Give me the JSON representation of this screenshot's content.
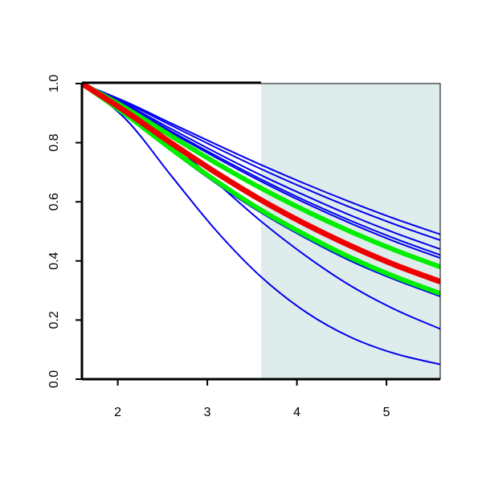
{
  "chart_data": {
    "type": "line",
    "x": [
      1.6,
      2.1,
      2.6,
      3.1,
      3.6,
      4.1,
      4.6,
      5.1,
      5.6
    ],
    "xlim": [
      1.6,
      5.6
    ],
    "xticks": [
      2,
      3,
      4,
      5
    ],
    "ylim": [
      0,
      1
    ],
    "yticks": [
      {
        "value": 0,
        "label": "0.0"
      },
      0.2,
      0.4,
      0.6,
      0.8,
      {
        "value": 1,
        "label": "1.0"
      }
    ],
    "shade_xlim": [
      3.6,
      5.6
    ],
    "shade_color": "#dfecec",
    "series": [
      {
        "color": "#0000ee",
        "line_width": 2,
        "values": [
          1,
          0.937,
          0.865,
          0.794,
          0.725,
          0.66,
          0.599,
          0.542,
          0.49
        ]
      },
      {
        "color": "#0000ee",
        "line_width": 2,
        "values": [
          1,
          0.933,
          0.858,
          0.783,
          0.711,
          0.644,
          0.581,
          0.523,
          0.47
        ]
      },
      {
        "color": "#0000ee",
        "line_width": 2,
        "values": [
          1,
          0.928,
          0.846,
          0.766,
          0.69,
          0.62,
          0.554,
          0.494,
          0.44
        ]
      },
      {
        "color": "#0000ee",
        "line_width": 2,
        "values": [
          1,
          0.924,
          0.838,
          0.755,
          0.676,
          0.603,
          0.536,
          0.475,
          0.42
        ]
      },
      {
        "color": "#0000ee",
        "line_width": 2,
        "values": [
          1,
          0.922,
          0.834,
          0.749,
          0.669,
          0.595,
          0.527,
          0.465,
          0.41
        ]
      },
      {
        "color": "#0000ee",
        "line_width": 2,
        "values": [
          1,
          0.891,
          0.775,
          0.666,
          0.568,
          0.482,
          0.406,
          0.341,
          0.285
        ]
      },
      {
        "color": "#0000ee",
        "line_width": 2,
        "values": [
          1,
          0.89,
          0.772,
          0.662,
          0.563,
          0.477,
          0.4,
          0.336,
          0.28
        ]
      },
      {
        "color": "#0000ee",
        "line_width": 2,
        "values": [
          1,
          0.925,
          0.801,
          0.666,
          0.534,
          0.417,
          0.316,
          0.235,
          0.17
        ]
      },
      {
        "color": "#0000ee",
        "line_width": 2,
        "values": [
          1,
          0.876,
          0.687,
          0.502,
          0.346,
          0.227,
          0.142,
          0.086,
          0.05
        ]
      },
      {
        "color": "#00ee00",
        "line_width": 6,
        "values": [
          1,
          0.915,
          0.822,
          0.731,
          0.646,
          0.569,
          0.499,
          0.436,
          0.38
        ]
      },
      {
        "color": "#00ee00",
        "line_width": 6,
        "values": [
          1,
          0.893,
          0.778,
          0.67,
          0.572,
          0.487,
          0.411,
          0.346,
          0.29
        ]
      },
      {
        "color": "#ee0000",
        "line_width": 7,
        "values": [
          1,
          0.903,
          0.798,
          0.698,
          0.606,
          0.524,
          0.451,
          0.386,
          0.33
        ]
      }
    ]
  }
}
